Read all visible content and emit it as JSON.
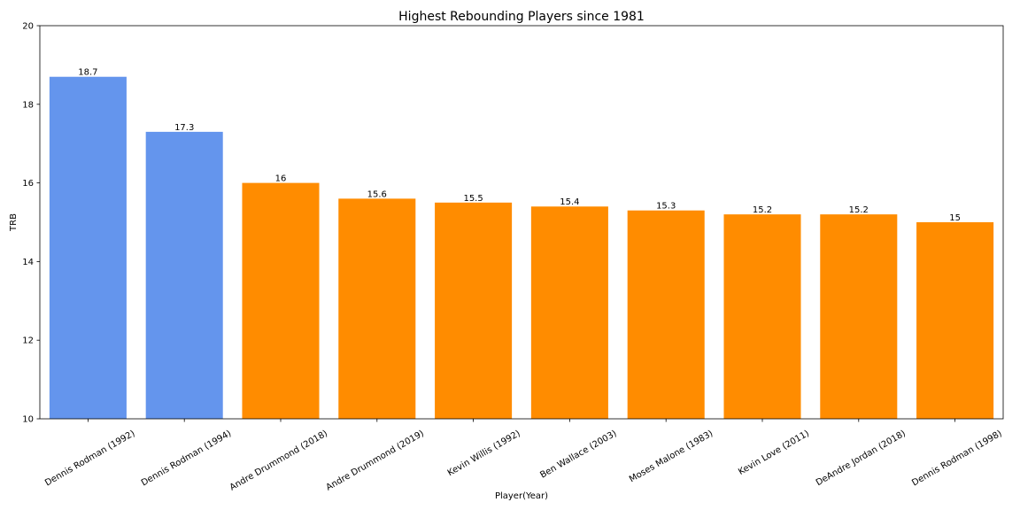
{
  "chart_data": {
    "type": "bar",
    "title": "Highest Rebounding Players since 1981",
    "xlabel": "Player(Year)",
    "ylabel": "TRB",
    "ylim": [
      10,
      20
    ],
    "yticks": [
      10,
      12,
      14,
      16,
      18,
      20
    ],
    "categories": [
      "Dennis Rodman (1992)",
      "Dennis Rodman (1994)",
      "Andre Drummond (2018)",
      "Andre Drummond (2019)",
      "Kevin Willis (1992)",
      "Ben Wallace (2003)",
      "Moses Malone (1983)",
      "Kevin Love (2011)",
      "DeAndre Jordan (2018)",
      "Dennis Rodman (1998)"
    ],
    "values": [
      18.7,
      17.3,
      16,
      15.6,
      15.5,
      15.4,
      15.3,
      15.2,
      15.2,
      15
    ],
    "data_labels": [
      "18.7",
      "17.3",
      "16",
      "15.6",
      "15.5",
      "15.4",
      "15.3",
      "15.2",
      "15.2",
      "15"
    ],
    "bar_colors": [
      "#6495ED",
      "#6495ED",
      "#FF8C00",
      "#FF8C00",
      "#FF8C00",
      "#FF8C00",
      "#FF8C00",
      "#FF8C00",
      "#FF8C00",
      "#FF8C00"
    ],
    "grid": false,
    "legend": "none"
  }
}
